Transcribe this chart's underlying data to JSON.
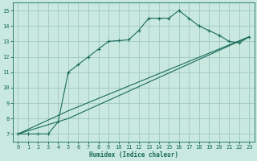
{
  "xlabel": "Humidex (Indice chaleur)",
  "bg_color": "#c8e8e0",
  "grid_color": "#a0c8c0",
  "line_color": "#1a6b5a",
  "xlim": [
    -0.5,
    23.5
  ],
  "ylim": [
    6.5,
    15.5
  ],
  "xticks": [
    0,
    1,
    2,
    3,
    4,
    5,
    6,
    7,
    8,
    9,
    10,
    11,
    12,
    13,
    14,
    15,
    16,
    17,
    18,
    19,
    20,
    21,
    22,
    23
  ],
  "yticks": [
    7,
    8,
    9,
    10,
    11,
    12,
    13,
    14,
    15
  ],
  "line1_x": [
    0,
    1,
    2,
    3,
    4,
    5,
    6,
    7,
    8,
    9,
    10,
    11,
    12,
    13,
    14,
    15,
    16,
    17,
    18,
    19,
    20,
    21,
    22,
    23
  ],
  "line1_y": [
    7.0,
    7.0,
    7.0,
    7.0,
    7.8,
    11.0,
    11.5,
    12.0,
    12.5,
    13.0,
    13.05,
    13.1,
    13.7,
    14.5,
    14.5,
    14.5,
    15.0,
    14.5,
    14.0,
    13.7,
    13.4,
    13.0,
    12.9,
    13.3
  ],
  "line2_x": [
    0,
    5,
    23
  ],
  "line2_y": [
    7.0,
    8.0,
    13.3
  ],
  "line3_x": [
    0,
    5,
    23
  ],
  "line3_y": [
    7.0,
    8.5,
    13.3
  ],
  "fig_width": 3.2,
  "fig_height": 2.0,
  "dpi": 100
}
